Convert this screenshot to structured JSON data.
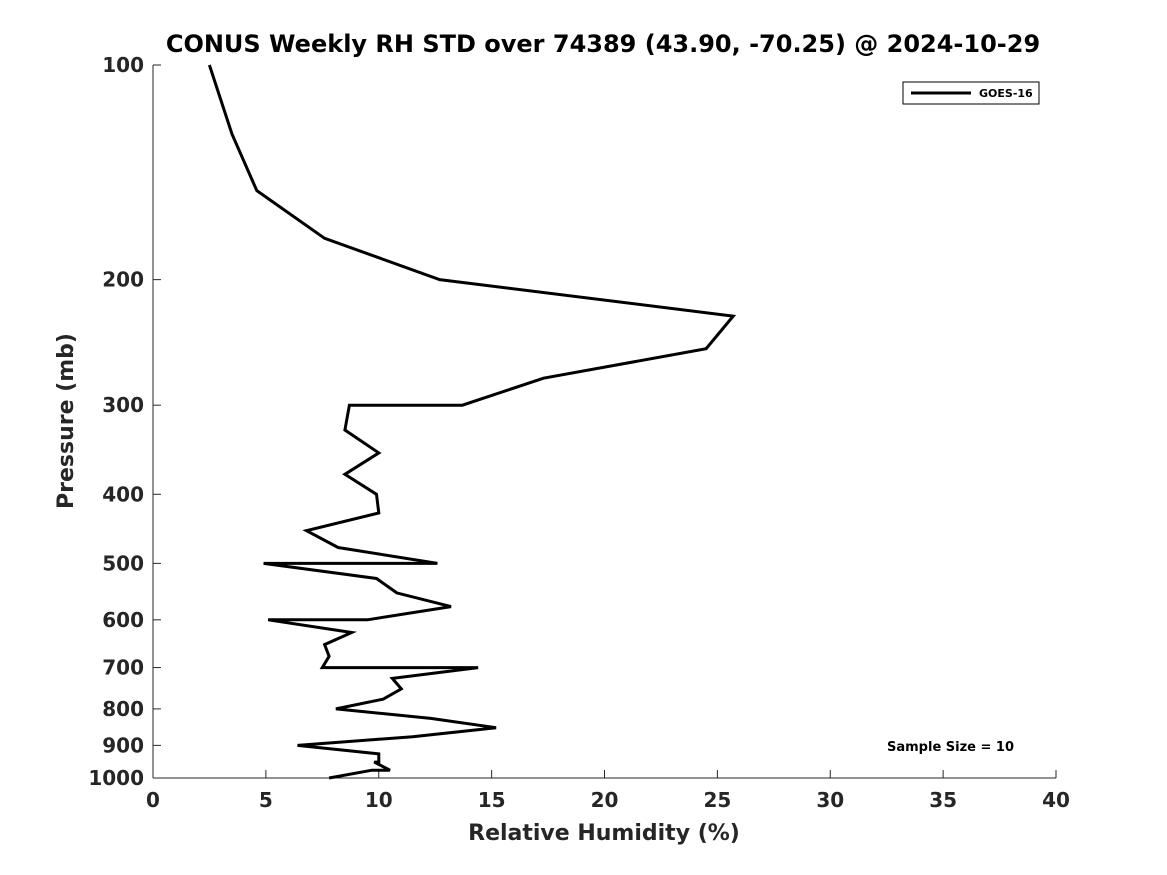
{
  "chart_data": {
    "type": "line",
    "title": "CONUS Weekly RH STD over 74389 (43.90, -70.25) @ 2024-10-29",
    "xlabel": "Relative Humidity (%)",
    "ylabel": "Pressure (mb)",
    "xlim": [
      0,
      40
    ],
    "ylim": [
      100,
      1000
    ],
    "y_scale": "log",
    "y_reversed": true,
    "x_ticks": [
      "0",
      "5",
      "10",
      "15",
      "20",
      "25",
      "30",
      "35",
      "40"
    ],
    "y_ticks": [
      "100",
      "200",
      "300",
      "400",
      "500",
      "600",
      "700",
      "800",
      "900",
      "1000"
    ],
    "grid": false,
    "legend_position": "top-right",
    "annotation": "Sample Size = 10",
    "series": [
      {
        "name": "GOES-16",
        "color": "#000000",
        "points": [
          [
            2.5,
            100
          ],
          [
            3.5,
            125
          ],
          [
            4.6,
            150
          ],
          [
            7.6,
            175
          ],
          [
            12.7,
            200
          ],
          [
            25.7,
            225
          ],
          [
            24.5,
            250
          ],
          [
            17.3,
            275
          ],
          [
            13.7,
            300
          ],
          [
            8.7,
            300
          ],
          [
            8.5,
            325
          ],
          [
            10.0,
            350
          ],
          [
            8.5,
            375
          ],
          [
            9.9,
            400
          ],
          [
            10.0,
            425
          ],
          [
            6.8,
            450
          ],
          [
            8.2,
            475
          ],
          [
            12.6,
            500
          ],
          [
            7.5,
            500
          ],
          [
            4.9,
            500
          ],
          [
            9.9,
            525
          ],
          [
            10.8,
            550
          ],
          [
            13.2,
            575
          ],
          [
            9.5,
            600
          ],
          [
            5.1,
            600
          ],
          [
            8.8,
            625
          ],
          [
            7.6,
            650
          ],
          [
            7.8,
            675
          ],
          [
            7.5,
            700
          ],
          [
            14.4,
            700
          ],
          [
            10.6,
            725
          ],
          [
            11.0,
            750
          ],
          [
            10.2,
            775
          ],
          [
            8.1,
            800
          ],
          [
            12.3,
            825
          ],
          [
            15.2,
            850
          ],
          [
            11.5,
            875
          ],
          [
            6.4,
            900
          ],
          [
            10.0,
            925
          ],
          [
            10.0,
            950
          ],
          [
            9.8,
            950
          ],
          [
            10.5,
            975
          ],
          [
            9.7,
            975
          ],
          [
            7.8,
            1000
          ]
        ]
      }
    ]
  }
}
